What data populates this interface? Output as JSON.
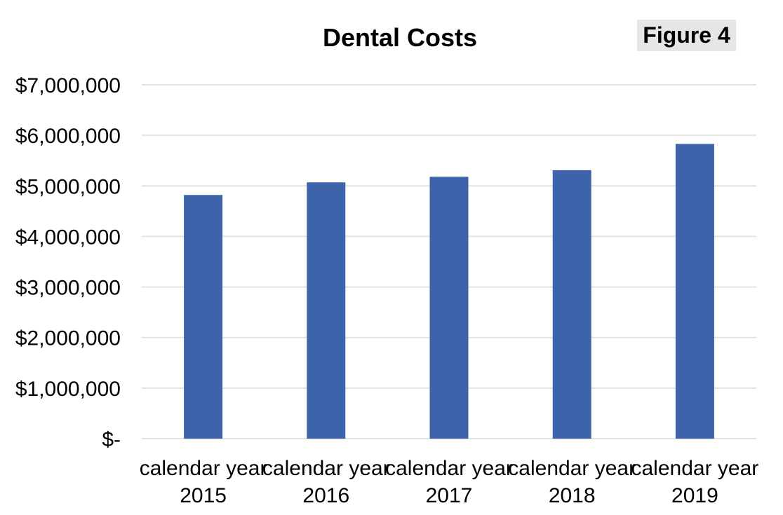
{
  "figure_label": "Figure 4",
  "chart_data": {
    "type": "bar",
    "title": "Dental Costs",
    "xlabel": "",
    "ylabel": "",
    "categories": [
      [
        "calendar year",
        "2015"
      ],
      [
        "calendar year",
        "2016"
      ],
      [
        "calendar year",
        "2017"
      ],
      [
        "calendar year",
        "2018"
      ],
      [
        "calendar year",
        "2019"
      ]
    ],
    "values": [
      4820000,
      5070000,
      5180000,
      5310000,
      5830000
    ],
    "ylim": [
      0,
      7000000
    ],
    "y_ticks": [
      0,
      1000000,
      2000000,
      3000000,
      4000000,
      5000000,
      6000000,
      7000000
    ],
    "y_tick_labels": [
      "$-",
      "$1,000,000",
      "$2,000,000",
      "$3,000,000",
      "$4,000,000",
      "$5,000,000",
      "$6,000,000",
      "$7,000,000"
    ],
    "grid": true,
    "legend": "none",
    "bar_color": "#3d64aa",
    "grid_color": "#e3e3e3",
    "figure_label_bg": "#e6e6e6"
  }
}
